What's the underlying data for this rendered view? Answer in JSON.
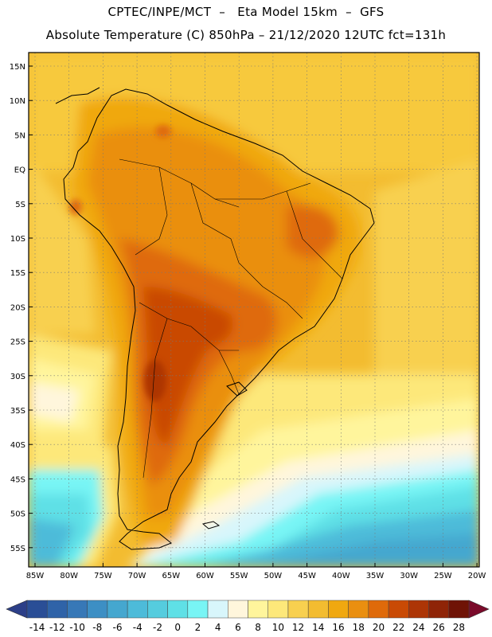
{
  "header": {
    "title_line1": "CPTEC/INPE/MCT  –   Eta Model 15km  –  GFS",
    "title_line2": "Absolute Temperature (C) 850hPa – 21/12/2020 12UTC fct=131h"
  },
  "map": {
    "lat_labels": [
      "15N",
      "10N",
      "5N",
      "EQ",
      "5S",
      "10S",
      "15S",
      "20S",
      "25S",
      "30S",
      "35S",
      "40S",
      "45S",
      "50S",
      "55S"
    ],
    "lon_labels": [
      "85W",
      "80W",
      "75W",
      "70W",
      "65W",
      "60W",
      "55W",
      "50W",
      "45W",
      "40W",
      "35W",
      "30W",
      "25W",
      "20W"
    ],
    "grid": "dotted"
  },
  "colorbar": {
    "unit": "C",
    "labels": [
      "-14",
      "-12",
      "-10",
      "-8",
      "-6",
      "-4",
      "-2",
      "0",
      "2",
      "4",
      "6",
      "8",
      "10",
      "12",
      "14",
      "16",
      "18",
      "20",
      "22",
      "24",
      "26",
      "28"
    ],
    "colors": [
      "#2a4e96",
      "#2f63a8",
      "#3778b7",
      "#3d8fc4",
      "#45a7cf",
      "#4dbbd9",
      "#55ccde",
      "#5fe0e6",
      "#78f5f5",
      "#d8f6fb",
      "#fff6dc",
      "#fff59c",
      "#fde87a",
      "#f8d04f",
      "#f3bc30",
      "#f0a810",
      "#ea8f10",
      "#df6a0a",
      "#c94a05",
      "#ad3506",
      "#8f2407",
      "#6f1306"
    ],
    "under_color": "#2c3f88",
    "over_color": "#7a0a2a"
  }
}
